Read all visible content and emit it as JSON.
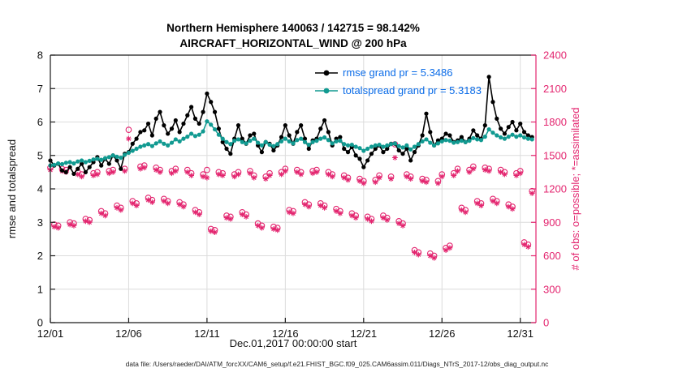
{
  "chart_data": {
    "type": "line+scatter",
    "title_line1": "Northern Hemisphere 140063 / 142715 = 98.142%",
    "title_line2": "AIRCRAFT_HORIZONTAL_WIND @ 200 hPa",
    "xlabel": "Dec.01,2017 00:00:00 start",
    "ylabel_left": "rmse and totalspread",
    "ylabel_right": "# of obs: o=possible; *=assimilated",
    "caption": "data file: /Users/raeder/DAI/ATM_forcXX/CAM6_setup/f.e21.FHIST_BGC.f09_025.CAM6assim.011/Diags_NTrS_2017-12/obs_diag_output.nc",
    "xlim": [
      1,
      32
    ],
    "ylim_left": [
      0,
      8
    ],
    "ylim_right": [
      0,
      2400
    ],
    "x_ticks": {
      "values": [
        1,
        6,
        11,
        16,
        21,
        26,
        31
      ],
      "labels": [
        "12/01",
        "12/06",
        "12/11",
        "12/16",
        "12/21",
        "12/26",
        "12/31"
      ]
    },
    "y_ticks_left": [
      0,
      1,
      2,
      3,
      4,
      5,
      6,
      7,
      8
    ],
    "y_ticks_right": [
      0,
      300,
      600,
      900,
      1200,
      1500,
      1800,
      2100,
      2400
    ],
    "x_start_day": 1,
    "x_step_days": 0.25,
    "n_points": 124,
    "grid": true,
    "colors": {
      "rmse": "#000000",
      "totalspread": "#119a91",
      "obs": "#e3256f",
      "legend_text": "#0b6ce8",
      "grid": "#dcdcdc",
      "axis": "#1a1a1a"
    },
    "series": [
      {
        "name": "rmse grand pr = 5.3486",
        "color": "#000000",
        "values": [
          4.85,
          4.7,
          4.75,
          4.55,
          4.5,
          4.65,
          4.45,
          4.6,
          4.75,
          4.5,
          4.65,
          4.8,
          4.95,
          4.7,
          4.9,
          4.75,
          5.0,
          4.85,
          4.6,
          5.05,
          5.1,
          5.35,
          5.5,
          5.7,
          5.75,
          5.95,
          5.6,
          6.1,
          6.3,
          5.9,
          5.65,
          5.8,
          6.05,
          5.7,
          5.95,
          6.2,
          6.45,
          6.1,
          5.95,
          6.3,
          6.85,
          6.6,
          6.3,
          5.8,
          5.4,
          5.2,
          5.05,
          5.5,
          5.9,
          5.5,
          5.35,
          5.6,
          5.65,
          5.3,
          5.1,
          5.4,
          5.35,
          5.15,
          5.3,
          5.55,
          5.9,
          5.6,
          5.35,
          5.7,
          5.9,
          5.5,
          5.2,
          5.45,
          5.5,
          5.8,
          6.05,
          5.7,
          5.3,
          5.5,
          5.55,
          5.2,
          5.1,
          5.25,
          5.0,
          4.9,
          4.65,
          4.85,
          5.05,
          5.2,
          5.3,
          5.1,
          5.2,
          5.35,
          5.35,
          5.15,
          5.05,
          5.2,
          4.85,
          5.1,
          5.3,
          5.6,
          6.25,
          5.7,
          5.3,
          5.45,
          5.5,
          5.65,
          5.6,
          5.4,
          5.45,
          5.55,
          5.4,
          5.5,
          5.75,
          5.6,
          5.5,
          5.9,
          7.35,
          6.6,
          6.1,
          5.8,
          5.65,
          5.85,
          6.0,
          5.75,
          5.95,
          5.7,
          5.6,
          5.55
        ]
      },
      {
        "name": "totalspread grand pr = 5.3183",
        "color": "#119a91",
        "values": [
          4.7,
          4.72,
          4.76,
          4.74,
          4.78,
          4.8,
          4.76,
          4.82,
          4.85,
          4.8,
          4.84,
          4.88,
          4.9,
          4.87,
          4.92,
          4.95,
          5.0,
          4.96,
          4.93,
          5.02,
          5.08,
          5.14,
          5.2,
          5.26,
          5.3,
          5.34,
          5.28,
          5.36,
          5.42,
          5.35,
          5.3,
          5.38,
          5.48,
          5.42,
          5.5,
          5.56,
          5.65,
          5.58,
          5.62,
          5.72,
          6.02,
          5.92,
          5.78,
          5.62,
          5.5,
          5.4,
          5.34,
          5.44,
          5.48,
          5.4,
          5.36,
          5.44,
          5.5,
          5.38,
          5.3,
          5.4,
          5.32,
          5.28,
          5.34,
          5.42,
          5.5,
          5.42,
          5.36,
          5.46,
          5.5,
          5.4,
          5.32,
          5.4,
          5.44,
          5.5,
          5.54,
          5.46,
          5.36,
          5.42,
          5.44,
          5.34,
          5.3,
          5.32,
          5.26,
          5.22,
          5.14,
          5.2,
          5.26,
          5.3,
          5.32,
          5.26,
          5.3,
          5.34,
          5.36,
          5.28,
          5.24,
          5.3,
          5.18,
          5.26,
          5.34,
          5.42,
          5.48,
          5.38,
          5.3,
          5.36,
          5.42,
          5.46,
          5.44,
          5.38,
          5.4,
          5.44,
          5.4,
          5.44,
          5.52,
          5.48,
          5.46,
          5.56,
          5.78,
          5.68,
          5.6,
          5.54,
          5.5,
          5.56,
          5.62,
          5.56,
          5.6,
          5.54,
          5.5,
          5.48
        ]
      }
    ],
    "obs_possible": [
      1390,
      880,
      870,
      1380,
      1370,
      900,
      890,
      1350,
      1330,
      930,
      920,
      1340,
      1350,
      1000,
      980,
      1360,
      1370,
      1050,
      1030,
      1380,
      1730,
      1090,
      1070,
      1400,
      1410,
      1120,
      1100,
      1390,
      1370,
      1110,
      1090,
      1360,
      1380,
      1080,
      1060,
      1370,
      1340,
      1010,
      990,
      1330,
      1370,
      840,
      830,
      1350,
      1340,
      960,
      950,
      1330,
      1350,
      990,
      970,
      1360,
      1320,
      890,
      870,
      1310,
      1340,
      860,
      850,
      1350,
      1380,
      1010,
      1000,
      1370,
      1350,
      1080,
      1060,
      1360,
      1370,
      1070,
      1050,
      1350,
      1330,
      1020,
      1000,
      1320,
      1300,
      980,
      960,
      1290,
      1270,
      950,
      930,
      1280,
      1320,
      960,
      940,
      1310,
      1600,
      910,
      890,
      1330,
      1310,
      650,
      630,
      1290,
      1280,
      620,
      600,
      1270,
      1330,
      670,
      690,
      1340,
      1380,
      1030,
      1010,
      1370,
      1400,
      1090,
      1070,
      1390,
      1380,
      1110,
      1090,
      1370,
      1350,
      1060,
      1040,
      1340,
      1360,
      720,
      700,
      1180
    ],
    "obs_assimilated": [
      1370,
      860,
      850,
      1360,
      1350,
      880,
      870,
      1330,
      1310,
      910,
      900,
      1320,
      1330,
      980,
      960,
      1340,
      1350,
      1030,
      1010,
      1360,
      1650,
      1070,
      1050,
      1380,
      1390,
      1100,
      1080,
      1370,
      1350,
      1090,
      1070,
      1340,
      1360,
      1060,
      1040,
      1350,
      1320,
      990,
      970,
      1310,
      1300,
      820,
      810,
      1330,
      1320,
      940,
      930,
      1310,
      1330,
      970,
      950,
      1340,
      1300,
      870,
      850,
      1290,
      1320,
      840,
      830,
      1330,
      1360,
      990,
      980,
      1350,
      1330,
      1060,
      1040,
      1340,
      1350,
      1050,
      1030,
      1330,
      1310,
      1000,
      980,
      1300,
      1280,
      960,
      940,
      1270,
      1250,
      930,
      910,
      1260,
      1300,
      940,
      920,
      1290,
      1480,
      890,
      870,
      1310,
      1290,
      630,
      610,
      1270,
      1260,
      600,
      580,
      1250,
      1310,
      650,
      670,
      1320,
      1360,
      1010,
      990,
      1350,
      1380,
      1070,
      1050,
      1370,
      1360,
      1090,
      1070,
      1350,
      1330,
      1040,
      1020,
      1320,
      1340,
      700,
      680,
      1160
    ]
  }
}
